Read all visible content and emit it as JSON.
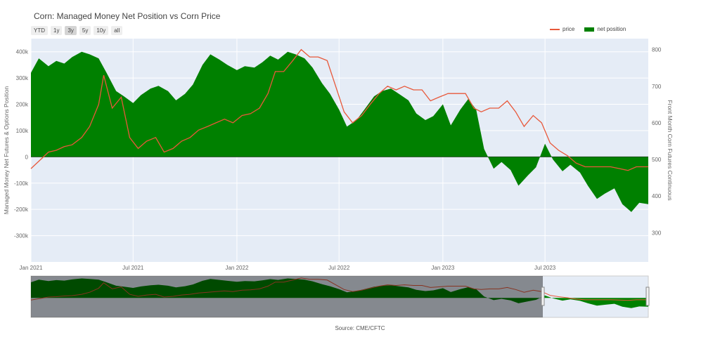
{
  "title": "Corn: Managed Money Net Position vs Corn Price",
  "range_buttons": [
    "YTD",
    "1y",
    "3y",
    "5y",
    "10y",
    "all"
  ],
  "active_range": "3y",
  "legend": {
    "price": "price",
    "net": "net position"
  },
  "colors": {
    "price": "#e8583a",
    "net": "#008000",
    "plot_bg": "#e5ecf6",
    "grid": "#ffffff"
  },
  "source": "Source: CME/CFTC",
  "chart_data": {
    "type": "area",
    "ylabel_left": "Managed Money Net Futures & Options Position",
    "ylabel_right": "Front Month Corn Futures Continuous",
    "xlim": [
      "2021-01-01",
      "2023-12-31"
    ],
    "ylim_left": [
      -400000,
      450000
    ],
    "ylim_right": [
      220,
      830
    ],
    "x_ticks": [
      "Jan 2021",
      "Jul 2021",
      "Jan 2022",
      "Jul 2022",
      "Jan 2023",
      "Jul 2023"
    ],
    "y_ticks_left": [
      "-300k",
      "-200k",
      "-100k",
      "0",
      "100k",
      "200k",
      "300k",
      "400k"
    ],
    "y_ticks_right": [
      "300",
      "400",
      "500",
      "600",
      "700",
      "800"
    ],
    "series": [
      {
        "name": "net position",
        "x": [
          "2021-01-01",
          "2021-01-15",
          "2021-02-01",
          "2021-02-15",
          "2021-03-01",
          "2021-03-15",
          "2021-04-01",
          "2021-04-15",
          "2021-05-01",
          "2021-05-15",
          "2021-06-01",
          "2021-06-15",
          "2021-07-01",
          "2021-07-15",
          "2021-08-01",
          "2021-08-15",
          "2021-09-01",
          "2021-09-15",
          "2021-10-01",
          "2021-10-15",
          "2021-11-01",
          "2021-11-15",
          "2021-12-01",
          "2021-12-15",
          "2022-01-01",
          "2022-01-15",
          "2022-02-01",
          "2022-02-15",
          "2022-03-01",
          "2022-03-15",
          "2022-04-01",
          "2022-04-15",
          "2022-05-01",
          "2022-05-15",
          "2022-06-01",
          "2022-06-15",
          "2022-07-01",
          "2022-07-15",
          "2022-08-01",
          "2022-08-15",
          "2022-09-01",
          "2022-09-15",
          "2022-10-01",
          "2022-10-15",
          "2022-11-01",
          "2022-11-15",
          "2022-12-01",
          "2022-12-15",
          "2023-01-01",
          "2023-01-15",
          "2023-02-01",
          "2023-02-15",
          "2023-03-01",
          "2023-03-15",
          "2023-04-01",
          "2023-04-15",
          "2023-05-01",
          "2023-05-15",
          "2023-06-01",
          "2023-06-15",
          "2023-07-01",
          "2023-07-15",
          "2023-08-01",
          "2023-08-15",
          "2023-09-01",
          "2023-09-15",
          "2023-10-01",
          "2023-10-15",
          "2023-11-01",
          "2023-11-15",
          "2023-12-01",
          "2023-12-15",
          "2023-12-31"
        ],
        "values": [
          320000,
          375000,
          345000,
          365000,
          355000,
          380000,
          400000,
          390000,
          375000,
          320000,
          250000,
          230000,
          205000,
          235000,
          260000,
          270000,
          250000,
          215000,
          240000,
          275000,
          350000,
          390000,
          370000,
          350000,
          330000,
          345000,
          340000,
          360000,
          385000,
          370000,
          400000,
          390000,
          375000,
          340000,
          280000,
          240000,
          180000,
          115000,
          140000,
          180000,
          230000,
          250000,
          260000,
          240000,
          215000,
          165000,
          140000,
          155000,
          200000,
          120000,
          180000,
          220000,
          180000,
          30000,
          -45000,
          -20000,
          -50000,
          -110000,
          -70000,
          -40000,
          50000,
          -10000,
          -55000,
          -30000,
          -60000,
          -110000,
          -160000,
          -140000,
          -120000,
          -180000,
          -210000,
          -175000,
          -180000
        ]
      },
      {
        "name": "price",
        "x": [
          "2021-01-01",
          "2021-01-15",
          "2021-02-01",
          "2021-02-15",
          "2021-03-01",
          "2021-03-15",
          "2021-04-01",
          "2021-04-15",
          "2021-05-01",
          "2021-05-10",
          "2021-05-25",
          "2021-06-10",
          "2021-06-25",
          "2021-07-10",
          "2021-07-25",
          "2021-08-10",
          "2021-08-25",
          "2021-09-10",
          "2021-09-25",
          "2021-10-10",
          "2021-10-25",
          "2021-11-10",
          "2021-11-25",
          "2021-12-10",
          "2021-12-25",
          "2022-01-10",
          "2022-01-25",
          "2022-02-10",
          "2022-02-25",
          "2022-03-10",
          "2022-03-25",
          "2022-04-10",
          "2022-04-25",
          "2022-05-10",
          "2022-05-25",
          "2022-06-10",
          "2022-06-25",
          "2022-07-10",
          "2022-07-25",
          "2022-08-10",
          "2022-08-25",
          "2022-09-10",
          "2022-09-25",
          "2022-10-10",
          "2022-10-25",
          "2022-11-10",
          "2022-11-25",
          "2022-12-10",
          "2022-12-25",
          "2023-01-10",
          "2023-01-25",
          "2023-02-10",
          "2023-02-25",
          "2023-03-10",
          "2023-03-25",
          "2023-04-10",
          "2023-04-25",
          "2023-05-10",
          "2023-05-25",
          "2023-06-10",
          "2023-06-25",
          "2023-07-10",
          "2023-07-25",
          "2023-08-10",
          "2023-08-25",
          "2023-09-10",
          "2023-09-25",
          "2023-10-10",
          "2023-10-25",
          "2023-11-10",
          "2023-11-25",
          "2023-12-10",
          "2023-12-31"
        ],
        "values": [
          475,
          495,
          520,
          525,
          535,
          540,
          560,
          590,
          650,
          730,
          640,
          670,
          560,
          530,
          550,
          560,
          520,
          530,
          550,
          560,
          580,
          590,
          600,
          610,
          600,
          620,
          625,
          640,
          680,
          740,
          740,
          770,
          800,
          780,
          780,
          770,
          700,
          630,
          600,
          620,
          650,
          680,
          700,
          690,
          700,
          690,
          690,
          660,
          670,
          680,
          680,
          680,
          640,
          630,
          640,
          640,
          660,
          630,
          590,
          620,
          600,
          545,
          525,
          510,
          490,
          480,
          480,
          480,
          480,
          475,
          470,
          480,
          480
        ]
      }
    ]
  }
}
